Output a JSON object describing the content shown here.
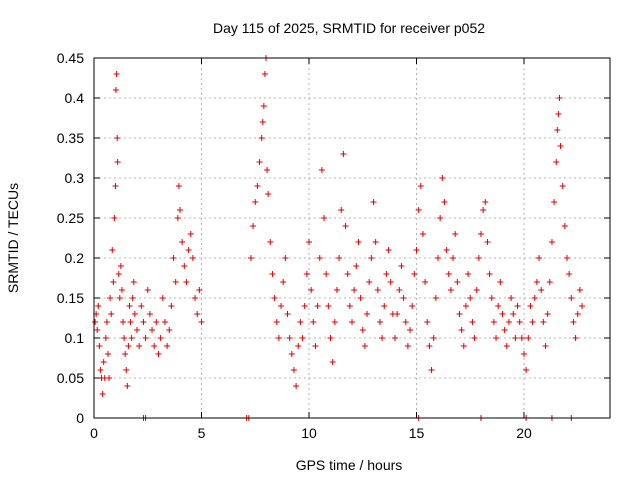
{
  "chart_data": {
    "type": "scatter",
    "title": "Day 115 of 2025, SRMTID for receiver p052",
    "xlabel": "GPS time / hours",
    "ylabel": "SRMTID / TECUs",
    "xlim": [
      0,
      24
    ],
    "ylim": [
      0,
      0.45
    ],
    "xticks": [
      0,
      5,
      10,
      15,
      20
    ],
    "xtick_labels": [
      "0",
      "5",
      "10",
      "15",
      "20"
    ],
    "yticks": [
      0,
      0.05,
      0.1,
      0.15,
      0.2,
      0.25,
      0.3,
      0.35,
      0.4,
      0.45
    ],
    "ytick_labels": [
      "0",
      "0.05",
      "0.1",
      "0.15",
      "0.2",
      "0.25",
      "0.3",
      "0.35",
      "0.4",
      "0.45"
    ],
    "grid": true,
    "marker": "plus",
    "color": "#e00000",
    "series": [
      {
        "name": "SRMTID",
        "points": [
          [
            0.05,
            0.12
          ],
          [
            0.1,
            0.13
          ],
          [
            0.15,
            0.11
          ],
          [
            0.2,
            0.14
          ],
          [
            0.25,
            0.09
          ],
          [
            0.3,
            0.06
          ],
          [
            0.35,
            0.05
          ],
          [
            0.4,
            0.03
          ],
          [
            0.45,
            0.07
          ],
          [
            0.5,
            0.05
          ],
          [
            0.55,
            0.1
          ],
          [
            0.6,
            0.12
          ],
          [
            0.65,
            0.08
          ],
          [
            0.7,
            0.05
          ],
          [
            0.75,
            0.15
          ],
          [
            0.8,
            0.13
          ],
          [
            0.85,
            0.21
          ],
          [
            0.9,
            0.17
          ],
          [
            0.95,
            0.25
          ],
          [
            1.0,
            0.29
          ],
          [
            1.02,
            0.41
          ],
          [
            1.05,
            0.43
          ],
          [
            1.08,
            0.35
          ],
          [
            1.1,
            0.32
          ],
          [
            1.15,
            0.18
          ],
          [
            1.2,
            0.15
          ],
          [
            1.25,
            0.19
          ],
          [
            1.3,
            0.16
          ],
          [
            1.35,
            0.12
          ],
          [
            1.4,
            0.1
          ],
          [
            1.45,
            0.08
          ],
          [
            1.5,
            0.06
          ],
          [
            1.55,
            0.04
          ],
          [
            1.6,
            0.09
          ],
          [
            1.65,
            0.14
          ],
          [
            1.7,
            0.12
          ],
          [
            1.75,
            0.1
          ],
          [
            1.8,
            0.15
          ],
          [
            1.85,
            0.17
          ],
          [
            1.9,
            0.13
          ],
          [
            2.0,
            0.11
          ],
          [
            2.1,
            0.09
          ],
          [
            2.2,
            0.14
          ],
          [
            2.3,
            0.12
          ],
          [
            2.4,
            0.1
          ],
          [
            2.5,
            0.16
          ],
          [
            2.6,
            0.13
          ],
          [
            2.7,
            0.11
          ],
          [
            2.8,
            0.09
          ],
          [
            2.9,
            0.12
          ],
          [
            3.0,
            0.08
          ],
          [
            3.1,
            0.1
          ],
          [
            3.2,
            0.15
          ],
          [
            3.3,
            0.12
          ],
          [
            3.4,
            0.09
          ],
          [
            3.5,
            0.11
          ],
          [
            3.6,
            0.14
          ],
          [
            3.7,
            0.2
          ],
          [
            3.8,
            0.17
          ],
          [
            3.9,
            0.25
          ],
          [
            3.95,
            0.29
          ],
          [
            4.0,
            0.26
          ],
          [
            4.1,
            0.22
          ],
          [
            4.2,
            0.19
          ],
          [
            4.3,
            0.17
          ],
          [
            4.4,
            0.21
          ],
          [
            4.5,
            0.23
          ],
          [
            4.6,
            0.2
          ],
          [
            4.7,
            0.15
          ],
          [
            4.8,
            0.13
          ],
          [
            4.9,
            0.16
          ],
          [
            5.0,
            0.12
          ],
          [
            7.3,
            0.2
          ],
          [
            7.4,
            0.24
          ],
          [
            7.5,
            0.27
          ],
          [
            7.6,
            0.29
          ],
          [
            7.7,
            0.32
          ],
          [
            7.8,
            0.35
          ],
          [
            7.85,
            0.37
          ],
          [
            7.9,
            0.39
          ],
          [
            7.95,
            0.43
          ],
          [
            8.0,
            0.45
          ],
          [
            8.05,
            0.31
          ],
          [
            8.1,
            0.28
          ],
          [
            8.2,
            0.22
          ],
          [
            8.3,
            0.18
          ],
          [
            8.4,
            0.15
          ],
          [
            8.5,
            0.12
          ],
          [
            8.6,
            0.1
          ],
          [
            8.7,
            0.14
          ],
          [
            8.8,
            0.17
          ],
          [
            8.9,
            0.2
          ],
          [
            9.0,
            0.13
          ],
          [
            9.1,
            0.1
          ],
          [
            9.2,
            0.08
          ],
          [
            9.3,
            0.06
          ],
          [
            9.4,
            0.04
          ],
          [
            9.5,
            0.09
          ],
          [
            9.6,
            0.12
          ],
          [
            9.7,
            0.1
          ],
          [
            9.8,
            0.14
          ],
          [
            9.9,
            0.18
          ],
          [
            10.0,
            0.22
          ],
          [
            10.1,
            0.16
          ],
          [
            10.2,
            0.12
          ],
          [
            10.3,
            0.09
          ],
          [
            10.4,
            0.14
          ],
          [
            10.5,
            0.2
          ],
          [
            10.6,
            0.31
          ],
          [
            10.7,
            0.25
          ],
          [
            10.8,
            0.18
          ],
          [
            10.9,
            0.14
          ],
          [
            11.0,
            0.1
          ],
          [
            11.1,
            0.07
          ],
          [
            11.2,
            0.12
          ],
          [
            11.3,
            0.16
          ],
          [
            11.4,
            0.2
          ],
          [
            11.5,
            0.26
          ],
          [
            11.6,
            0.33
          ],
          [
            11.7,
            0.24
          ],
          [
            11.8,
            0.18
          ],
          [
            11.9,
            0.14
          ],
          [
            12.0,
            0.12
          ],
          [
            12.1,
            0.16
          ],
          [
            12.2,
            0.19
          ],
          [
            12.3,
            0.22
          ],
          [
            12.4,
            0.15
          ],
          [
            12.5,
            0.11
          ],
          [
            12.6,
            0.09
          ],
          [
            12.7,
            0.13
          ],
          [
            12.8,
            0.17
          ],
          [
            12.9,
            0.2
          ],
          [
            13.0,
            0.27
          ],
          [
            13.1,
            0.22
          ],
          [
            13.2,
            0.16
          ],
          [
            13.3,
            0.12
          ],
          [
            13.4,
            0.1
          ],
          [
            13.5,
            0.14
          ],
          [
            13.6,
            0.18
          ],
          [
            13.7,
            0.21
          ],
          [
            13.8,
            0.17
          ],
          [
            13.9,
            0.13
          ],
          [
            14.0,
            0.1
          ],
          [
            14.1,
            0.13
          ],
          [
            14.2,
            0.16
          ],
          [
            14.3,
            0.19
          ],
          [
            14.4,
            0.15
          ],
          [
            14.5,
            0.12
          ],
          [
            14.6,
            0.09
          ],
          [
            14.7,
            0.11
          ],
          [
            14.8,
            0.14
          ],
          [
            14.9,
            0.18
          ],
          [
            15.0,
            0.21
          ],
          [
            15.1,
            0.26
          ],
          [
            15.2,
            0.29
          ],
          [
            15.3,
            0.23
          ],
          [
            15.4,
            0.17
          ],
          [
            15.5,
            0.12
          ],
          [
            15.6,
            0.09
          ],
          [
            15.7,
            0.06
          ],
          [
            15.8,
            0.1
          ],
          [
            15.9,
            0.15
          ],
          [
            16.0,
            0.2
          ],
          [
            16.1,
            0.25
          ],
          [
            16.2,
            0.3
          ],
          [
            16.3,
            0.27
          ],
          [
            16.4,
            0.21
          ],
          [
            16.5,
            0.18
          ],
          [
            16.6,
            0.16
          ],
          [
            16.7,
            0.2
          ],
          [
            16.8,
            0.23
          ],
          [
            16.9,
            0.17
          ],
          [
            17.0,
            0.13
          ],
          [
            17.1,
            0.11
          ],
          [
            17.2,
            0.09
          ],
          [
            17.3,
            0.14
          ],
          [
            17.4,
            0.18
          ],
          [
            17.5,
            0.15
          ],
          [
            17.6,
            0.12
          ],
          [
            17.7,
            0.1
          ],
          [
            17.8,
            0.16
          ],
          [
            17.9,
            0.2
          ],
          [
            18.0,
            0.23
          ],
          [
            18.1,
            0.26
          ],
          [
            18.2,
            0.27
          ],
          [
            18.3,
            0.22
          ],
          [
            18.4,
            0.18
          ],
          [
            18.5,
            0.15
          ],
          [
            18.6,
            0.12
          ],
          [
            18.7,
            0.1
          ],
          [
            18.8,
            0.14
          ],
          [
            18.9,
            0.17
          ],
          [
            19.0,
            0.13
          ],
          [
            19.1,
            0.11
          ],
          [
            19.2,
            0.09
          ],
          [
            19.3,
            0.12
          ],
          [
            19.4,
            0.15
          ],
          [
            19.5,
            0.13
          ],
          [
            19.6,
            0.1
          ],
          [
            19.7,
            0.14
          ],
          [
            19.8,
            0.12
          ],
          [
            19.9,
            0.1
          ],
          [
            20.0,
            0.08
          ],
          [
            20.1,
            0.06
          ],
          [
            20.2,
            0.1
          ],
          [
            20.3,
            0.14
          ],
          [
            20.4,
            0.12
          ],
          [
            20.5,
            0.15
          ],
          [
            20.6,
            0.17
          ],
          [
            20.7,
            0.2
          ],
          [
            20.8,
            0.16
          ],
          [
            20.9,
            0.12
          ],
          [
            21.0,
            0.09
          ],
          [
            21.1,
            0.13
          ],
          [
            21.2,
            0.17
          ],
          [
            21.3,
            0.22
          ],
          [
            21.4,
            0.27
          ],
          [
            21.5,
            0.32
          ],
          [
            21.55,
            0.36
          ],
          [
            21.6,
            0.38
          ],
          [
            21.65,
            0.4
          ],
          [
            21.7,
            0.34
          ],
          [
            21.8,
            0.29
          ],
          [
            21.9,
            0.24
          ],
          [
            22.0,
            0.2
          ],
          [
            22.1,
            0.18
          ],
          [
            22.2,
            0.15
          ],
          [
            22.3,
            0.12
          ],
          [
            22.4,
            0.1
          ],
          [
            22.5,
            0.13
          ],
          [
            22.6,
            0.16
          ],
          [
            22.7,
            0.14
          ],
          [
            2.3,
            0.0
          ],
          [
            2.4,
            0.0
          ],
          [
            7.1,
            0.0
          ],
          [
            7.2,
            0.0
          ],
          [
            15.1,
            0.0
          ],
          [
            18.0,
            0.0
          ],
          [
            20.1,
            0.0
          ],
          [
            21.3,
            0.0
          ],
          [
            22.2,
            0.0
          ]
        ]
      }
    ]
  }
}
